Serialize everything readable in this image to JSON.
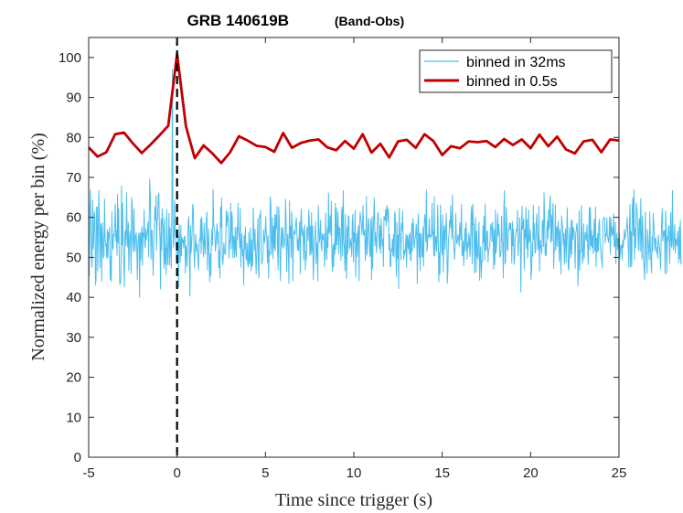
{
  "chart_data": {
    "type": "line",
    "title": "GRB 140619B",
    "subtitle": "(Band-Obs)",
    "xlabel": "Time since trigger (s)",
    "ylabel": "Normalized energy per bin (%)",
    "xlim": [
      -5,
      25
    ],
    "ylim": [
      0,
      105
    ],
    "xticks": [
      -5,
      0,
      5,
      10,
      15,
      20,
      25
    ],
    "xtick_labels": [
      "-5",
      "0",
      "5",
      "10",
      "15",
      "20",
      "25"
    ],
    "yticks": [
      0,
      10,
      20,
      30,
      40,
      50,
      60,
      70,
      80,
      90,
      100
    ],
    "ytick_labels": [
      "0",
      "10",
      "20",
      "30",
      "40",
      "50",
      "60",
      "70",
      "80",
      "90",
      "100"
    ],
    "grid": false,
    "legend_position": "top-right",
    "trigger_line_x": 0,
    "series": [
      {
        "name": "binned in 32ms",
        "color": "#4DBEEE",
        "style": "thin-line",
        "x_start": -5,
        "x_step": 0.032,
        "values": [
          54.9,
          45.4,
          61.8,
          66.8,
          55.3,
          49.8,
          47.5,
          64.3,
          52.2,
          55.5,
          61.5,
          60.3,
          43.1,
          44.5,
          62.6,
          62.6,
          46.6,
          57.3,
          66.7,
          58.4,
          47.5,
          58.4,
          57.3,
          44.1,
          58.6,
          54.7,
          49.8,
          50.3,
          64.6,
          54.9,
          52.9,
          53.3,
          49.7,
          56.9,
          50.0,
          56.3,
          54.8,
          57.6,
          44.4,
          50.3,
          44.0,
          61.5,
          52.8,
          52.0,
          55.8,
          55.2,
          58.0,
          63.4,
          54.1,
          56.6,
          50.5,
          65.8,
          53.6,
          62.1,
          50.1,
          43.2,
          43.6,
          45.7,
          67.8,
          53.1,
          63.6,
          52.0,
          48.7,
          42.6,
          56.0,
          56.8,
          52.9,
          66.2,
          55.7,
          52.6,
          58.8,
          46.7,
          53.9,
          56.6,
          54.6,
          45.9,
          64.9,
          63.3,
          52.8,
          51.4,
          62.1,
          54.3,
          51.5,
          55.3,
          56.1,
          53.2,
          44.4,
          52.8,
          55.2,
          56.1,
          40.0,
          56.1,
          49.3,
          55.9,
          57.7,
          48.0,
          56.1,
          55.2,
          62.0,
          53.5,
          52.4,
          57.2,
          54.4,
          56.0,
          56.4,
          58.9,
          50.1,
          60.3,
          69.5,
          65.0,
          49.6,
          56.8,
          56.7,
          50.6,
          45.5,
          53.6,
          57.9,
          62.5,
          59.4,
          65.4,
          51.8,
          59.1,
          60.1,
          65.6,
          66.1,
          58.0,
          55.1,
          42.1,
          59.6,
          51.7,
          62.2,
          58.3,
          57.9,
          47.2,
          59.8,
          48.3,
          52.4,
          45.6,
          62.0,
          52.2,
          48.1,
          53.2,
          61.0,
          48.1,
          57.4,
          52.7,
          47.2,
          62.3,
          97.0,
          57.4,
          52.5,
          54.9,
          64.2,
          57.2,
          55.3,
          51.6,
          48.3,
          50.8,
          55.5,
          42.5,
          58.2,
          52.7,
          48.8,
          58.0,
          50.4,
          55.0,
          53.7,
          54.4,
          52.4,
          55.1,
          55.4,
          46.0,
          52.9,
          51.2,
          47.7,
          55.0,
          58.9,
          60.2,
          50.6,
          40.3,
          57.9,
          51.1,
          53.2,
          57.3,
          63.3,
          62.4,
          52.9,
          47.3,
          51.5,
          55.8,
          52.8,
          51.4,
          53.4,
          49.2,
          46.8,
          51.9,
          54.6,
          54.2,
          59.6,
          50.9,
          60.1,
          55.5,
          53.9,
          50.1,
          58.6,
          53.4,
          50.8,
          56.0,
          59.4,
          61.4,
          46.8,
          53.3,
          57.1,
          50.4,
          43.9,
          50.9,
          45.3,
          55.1,
          57.2,
          53.0,
          67.0,
          57.7,
          57.6,
          56.0,
          51.5,
          53.1,
          56.5,
          58.4,
          53.5,
          56.4,
          47.4,
          51.6,
          44.9,
          62.5,
          57.5,
          64.8,
          50.6,
          48.2,
          50.3,
          53.6,
          51.6,
          50.8,
          50.7,
          61.7,
          57.8,
          59.6,
          61.4,
          58.5,
          49.8,
          54.0,
          53.7,
          63.5,
          52.1,
          61.3,
          59.4,
          49.9,
          55.3,
          54.5,
          49.9,
          57.5,
          52.1,
          50.2,
          57.5,
          54.4,
          63.5,
          56.2,
          55.9,
          52.4,
          62.3,
          47.6,
          53.6,
          55.9,
          50.4,
          52.1,
          43.1,
          55.4,
          52.1,
          57.5,
          50.2,
          49.3,
          53.5,
          48.6,
          47.6,
          56.3,
          48.3,
          49.2,
          57.4,
          46.6,
          54.4,
          47.7,
          48.4,
          62.4,
          55.8,
          51.6,
          57.1,
          51.2,
          45.8,
          50.4,
          53.8,
          59.7,
          47.6,
          44.8,
          60.6,
          59.9,
          61.8,
          50.0,
          48.3,
          49.2,
          49.7,
          56.9,
          54.5,
          53.6,
          56.2,
          60.2,
          55.9,
          55.0,
          48.7,
          55.4,
          44.8,
          51.7,
          50.4,
          65.2,
          63.6,
          50.7,
          54.3,
          60.0,
          49.6,
          57.8,
          52.3,
          60.7,
          51.6,
          60.6,
          57.3,
          62.7,
          50.9,
          46.9,
          62.6,
          59.5,
          50.7,
          44.1,
          52.8,
          57.5,
          52.6,
          57.4,
          55.4,
          52.3,
          53.2,
          54.8,
          64.5,
          58.9,
          46.5,
          53.3,
          55.9,
          51.5,
          43.5,
          64.1,
          54.9,
          57.8,
          49.9,
          61.4,
          57.7,
          44.1,
          54.6,
          56.7,
          56.0,
          55.8,
          58.4,
          59.9,
          57.1,
          51.8,
          54.5,
          51.6,
          55.4,
          58.9,
          45.9,
          58.9,
          62.1,
          55.5,
          57.3,
          56.2,
          49.3,
          56.0,
          58.1,
          46.9,
          51.4,
          49.6,
          57.6,
          56.9,
          54.2,
          61.8,
          59.3,
          50.5,
          57.8,
          50.7,
          61.2,
          51.3,
          57.8,
          44.5,
          48.9,
          54.3,
          55.6,
          58.9,
          48.4,
          52.2,
          53.8,
          44.1,
          63.0,
          57.4,
          53.8,
          55.2,
          59.3,
          52.7,
          51.7,
          56.0,
          54.7,
          54.4,
          55.9,
          47.6,
          50.9,
          61.1,
          52.4,
          49.5,
          57.4,
          52.5,
          66.1,
          56.0,
          56.8,
          60.4,
          55.6,
          64.0,
          49.4,
          46.4,
          53.1,
          47.6,
          53.5,
          50.8,
          63.5,
          51.9,
          62.4,
          53.2,
          56.5,
          61.4,
          50.8,
          57.5,
          57.3,
          53.2,
          49.2,
          60.6,
          62.6,
          50.3,
          66.7,
          54.4,
          52.1,
          46.6,
          60.8,
          49.4,
          44.7,
          57.6,
          51.0,
          60.2,
          60.4,
          52.1,
          53.0,
          54.6,
          52.9,
          50.2,
          59.1,
          60.8,
          48.8,
          56.2,
          54.0,
          61.7,
          45.1,
          52.5,
          56.0,
          50.2,
          56.3,
          58.0,
          44.1,
          58.4,
          61.3,
          59.6,
          58.5,
          55.7,
          58.0,
          63.0,
          55.5,
          56.0,
          56.9,
          49.2,
          52.3,
          65.2,
          50.6,
          52.8,
          57.9,
          59.8,
          56.2,
          50.2,
          50.9,
          59.5,
          44.4,
          60.1,
          47.2,
          56.2,
          60.9,
          64.8,
          52.9,
          56.2,
          54.5,
          51.1,
          56.8,
          61.2,
          60.8,
          54.9,
          52.2,
          57.9,
          51.0,
          59.7,
          56.1,
          52.8,
          54.5,
          47.7,
          60.2,
          59.9,
          59.3,
          62.0,
          57.9,
          62.9,
          62.3,
          59.0,
          62.0,
          51.9,
          55.7,
          47.7,
          47.7,
          52.1,
          51.5,
          54.6,
          50.4,
          55.8,
          50.0,
          61.4,
          60.5,
          51.4,
          45.2,
          58.7,
          49.7,
          55.6,
          42.2,
          62.3,
          56.1,
          55.0,
          49.4,
          58.5,
          56.6,
          61.6,
          55.4,
          49.5,
          51.8,
          50.8,
          52.3,
          55.8,
          47.4,
          55.5,
          53.7,
          52.1,
          55.6,
          50.9,
          56.1,
          49.4,
          49.2,
          58.4,
          51.5,
          59.7,
          58.3,
          53.7,
          52.4,
          54.7,
          55.5,
          58.3,
          54.9,
          43.4,
          58.8,
          60.9,
          50.1,
          55.9,
          46.7,
          56.1,
          55.4,
          50.5,
          50.0,
          57.5,
          47.8,
          57.5,
          60.7,
          59.0,
          53.9,
          66.9,
          51.5,
          52.9,
          55.8,
          55.1,
          59.7,
          54.9,
          55.1,
          55.6,
          55.1,
          63.5,
          55.8,
          56.5,
          50.4,
          65.2,
          50.3,
          55.1,
          55.2,
          51.5,
          53.9,
          63.1,
          54.6,
          43.9,
          51.2,
          45.8,
          63.1,
          58.2,
          52.0,
          50.6,
          60.6,
          46.3,
          56.7,
          57.9,
          52.0,
          56.1,
          61.0,
          55.2,
          43.5,
          46.6,
          54.4,
          55.5,
          59.3,
          57.5,
          62.9,
          58.4,
          54.6,
          65.5,
          56.5,
          53.7,
          51.4,
          49.5,
          53.8,
          61.0,
          54.3,
          53.4,
          54.6,
          55.7,
          54.5,
          52.8,
          58.7,
          57.1,
          54.4,
          63.3,
          50.4,
          50.7,
          54.1,
          47.9,
          53.0,
          57.2,
          51.6,
          58.8,
          55.7,
          49.5,
          53.7,
          52.4,
          56.1,
          55.0,
          50.2,
          52.6,
          60.8,
          62.7,
          48.4,
          63.3,
          58.2,
          58.3,
          46.1,
          53.5,
          60.0,
          46.3,
          56.6,
          50.6,
          49.7,
          54.0,
          58.8,
          44.3,
          50.6,
          52.7,
          44.9,
          49.1,
          49.0,
          57.9,
          53.8,
          60.2,
          49.2,
          63.4,
          51.9,
          51.7,
          56.4,
          56.6,
          48.8,
          51.8,
          52.1,
          52.5,
          56.3,
          58.4,
          57.5,
          53.9,
          58.8,
          54.9,
          47.0,
          56.9,
          48.2,
          61.9,
          51.0,
          52.7,
          57.1,
          60.9,
          55.3,
          58.3,
          55.7,
          50.1,
          50.2,
          51.8,
          60.3,
          53.9,
          53.7,
          44.9,
          62.3,
          66.7,
          48.3,
          49.0,
          62.5,
          58.8,
          52.2,
          51.7,
          57.0,
          56.8,
          58.7,
          57.0,
          58.5,
          55.6,
          48.6,
          58.9,
          52.9,
          57.1,
          48.2,
          49.8,
          55.1,
          55.7,
          57.0,
          56.6,
          61.8,
          50.5,
          53.4,
          54.1,
          59.9,
          55.3,
          41.3,
          54.2,
          62.8,
          57.0,
          57.8,
          59.7,
          47.0,
          57.0,
          54.7,
          62.5,
          52.3,
          59.5,
          49.8,
          53.1,
          61.9,
          53.8,
          54.1,
          56.9,
          44.5,
          46.7,
          53.6,
          50.3,
          63.1,
          54.6,
          58.5,
          51.1,
          51.2,
          57.5,
          60.9,
          56.4,
          51.9,
          52.5,
          62.8,
          46.6,
          54.3,
          53.1,
          52.3,
          50.9,
          59.3,
          58.7,
          52.7,
          66.2,
          59.5,
          50.5,
          53.4,
          50.4,
          56.9,
          59.2,
          54.6,
          61.8,
          57.2,
          63.4,
          65.4,
          53.7,
          60.5,
          54.1,
          60.6,
          63.5,
          47.2,
          51.9,
          51.7,
          63.1,
          52.0,
          57.5,
          57.5,
          52.7,
          59.1,
          56.3,
          48.9,
          57.0,
          52.2,
          45.8,
          60.4,
          58.3,
          57.5,
          53.3,
          56.0,
          48.2,
          54.2,
          57.2,
          48.6,
          55.2,
          62.4,
          53.6,
          46.8,
          47.5,
          57.5,
          53.7,
          49.9,
          59.4,
          50.8,
          59.2,
          54.5,
          57.4,
          56.5,
          53.5,
          47.3,
          55.9,
          56.8,
          58.5,
          56.7,
          42.9,
          49.4,
          61.6,
          46.8,
          51.7,
          51.4,
          63.0,
          55.2,
          48.5,
          50.5,
          58.4,
          49.7,
          54.5,
          56.3,
          55.2,
          54.2,
          58.1,
          53.0,
          48.2,
          55.1,
          62.4,
          51.9,
          62.5,
          52.9,
          56.7,
          52.4,
          55.4,
          50.9,
          57.2,
          59.5,
          51.6,
          62.6,
          47.6,
          54.8,
          51.3,
          56.0,
          51.6,
          58.4,
          59.5,
          53.4,
          52.0,
          50.1,
          49.4,
          47.3,
          59.4,
          59.7,
          60.0,
          60.0,
          53.6,
          55.7,
          55.5,
          59.9,
          55.2,
          54.8,
          53.8,
          55.8,
          60.1,
          50.9,
          59.9,
          56.9,
          55.3,
          57.5,
          55.7,
          60.9,
          52.6,
          52.7,
          58.8,
          48.4,
          54.2,
          56.1,
          51.9,
          54.7,
          52.5,
          56.1,
          49.8,
          52.1,
          53.0,
          53.1,
          49.3,
          54.3,
          52.5,
          54.2,
          56.9,
          54.6,
          55.5,
          56.7,
          57.8,
          60.0,
          55.6,
          52.2,
          47.4,
          58.5,
          63.2,
          47.6,
          56.4,
          47.7,
          62.1,
          64.9,
          55.5,
          66.9,
          49.4,
          57.2,
          52.5,
          63.6,
          62.1,
          60.8,
          55.6,
          51.7,
          58.8,
          59.8,
          51.5,
          64.7,
          56.1,
          49.6,
          60.4,
          55.6,
          49.4,
          46.9,
          44.4,
          61.3,
          54.7,
          50.5,
          46.0,
          56.9,
          53.9,
          52.1,
          49.4,
          61.4,
          52.6,
          49.2,
          46.1,
          55.2,
          51.5,
          61.0,
          58.3,
          55.6,
          51.7,
          54.8,
          54.3,
          51.1,
          52.5,
          49.8,
          55.6,
          53.7,
          52.5,
          50.8,
          47.1,
          53.7,
          59.3,
          62.2,
          54.1,
          56.5,
          55.4,
          56.7,
          45.8,
          61.6,
          56.7,
          46.0,
          55.2,
          54.2,
          57.5,
          57.9,
          48.3,
          53.9,
          61.2,
          52.9,
          52.5,
          66.7,
          54.2,
          51.9,
          55.1,
          58.3,
          51.1,
          54.5,
          54.1,
          52.9,
          56.6,
          54.3,
          48.7,
          57.6,
          49.6,
          59.4,
          48.3,
          49.3
        ]
      },
      {
        "name": "binned in 0.5s",
        "color": "#C00000",
        "style": "thick-line",
        "x": [
          -5.0,
          -4.5,
          -4.0,
          -3.5,
          -3.0,
          -2.5,
          -2.0,
          -1.5,
          -1.0,
          -0.5,
          0.0,
          0.5,
          1.0,
          1.5,
          2.0,
          2.5,
          3.0,
          3.5,
          4.0,
          4.5,
          5.0,
          5.5,
          6.0,
          6.5,
          7.0,
          7.5,
          8.0,
          8.5,
          9.0,
          9.5,
          10.0,
          10.5,
          11.0,
          11.5,
          12.0,
          12.5,
          13.0,
          13.5,
          14.0,
          14.5,
          15.0,
          15.5,
          16.0,
          16.5,
          17.0,
          17.5,
          18.0,
          18.5,
          19.0,
          19.5,
          20.0,
          20.5,
          21.0,
          21.5,
          22.0,
          22.5,
          23.0,
          23.5,
          24.0,
          24.5,
          25.0
        ],
        "values": [
          77.5,
          75.2,
          76.3,
          80.8,
          81.2,
          78.5,
          76.1,
          78.2,
          80.5,
          82.9,
          100.9,
          82.8,
          74.8,
          78.0,
          76.0,
          73.6,
          76.3,
          80.3,
          79.2,
          77.9,
          77.6,
          76.4,
          81.1,
          77.4,
          78.6,
          79.2,
          79.5,
          77.5,
          76.8,
          79.1,
          77.2,
          80.8,
          76.2,
          78.4,
          75.0,
          79.0,
          79.4,
          77.4,
          80.8,
          79.1,
          75.6,
          77.8,
          77.3,
          79.0,
          78.8,
          79.1,
          77.6,
          79.6,
          78.1,
          79.5,
          77.3,
          80.7,
          77.8,
          80.2,
          77.0,
          76.0,
          79.0,
          79.4,
          76.3,
          79.5,
          79.2
        ]
      }
    ]
  }
}
